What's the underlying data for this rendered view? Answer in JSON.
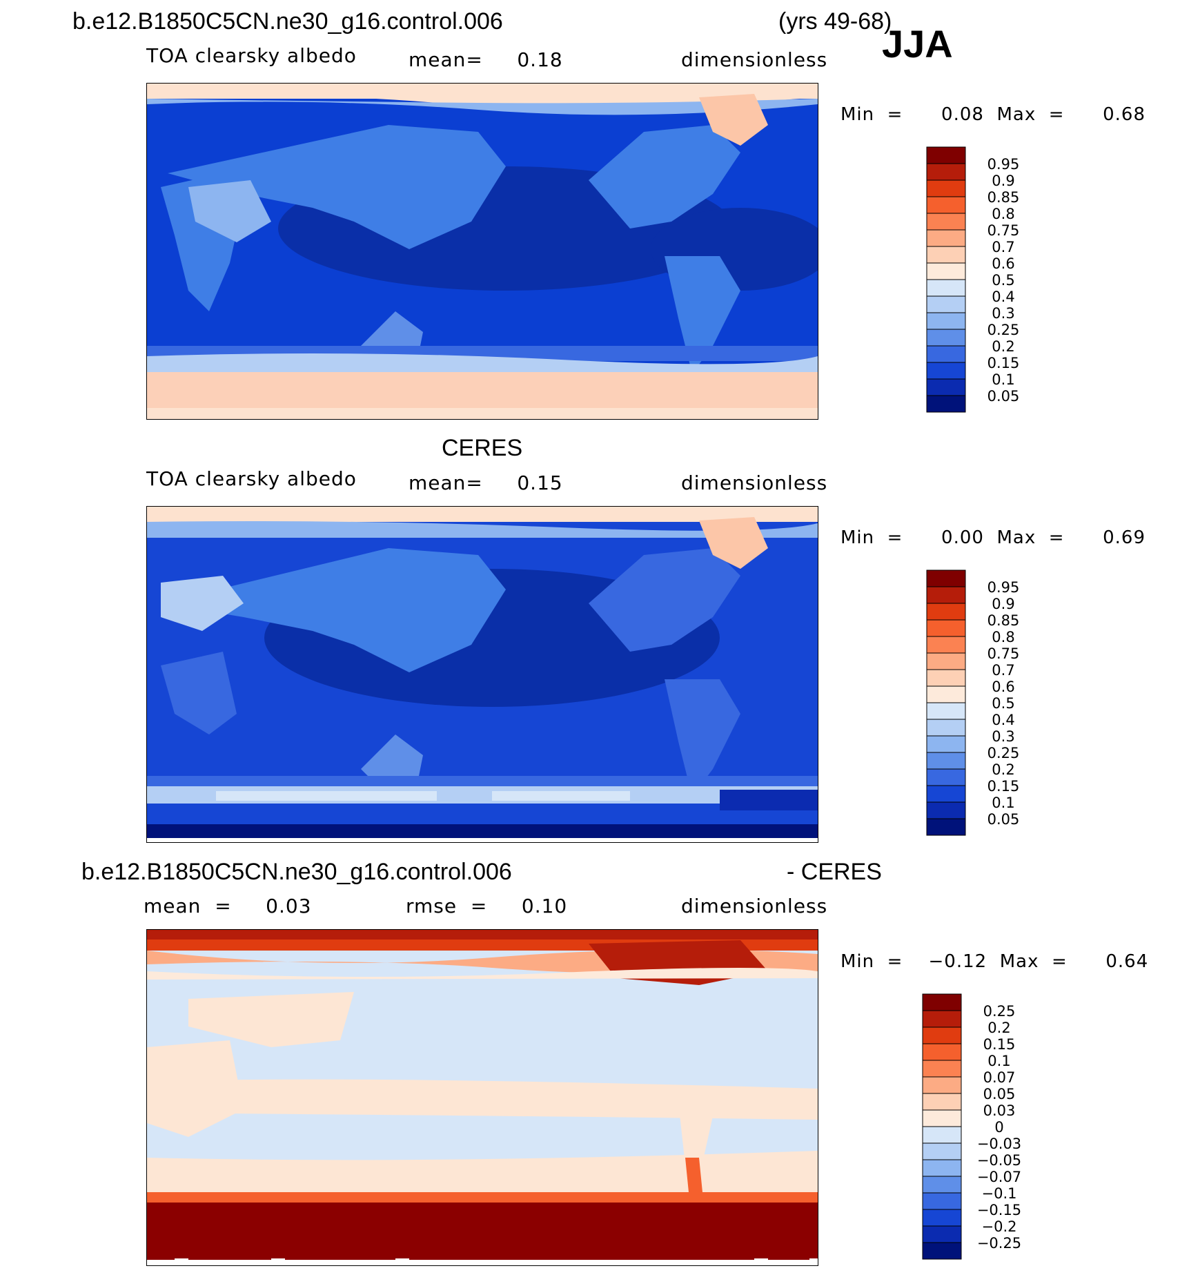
{
  "header": {
    "case_title": "b.e12.B1850C5CN.ne30_g16.control.006",
    "years": "(yrs 49-68)",
    "season": "JJA"
  },
  "panels": [
    {
      "title": "",
      "variable": "TOA clearsky albedo",
      "stat1": "mean=     0.18",
      "units": "dimensionless",
      "minmax": "Min  =      0.08  Max  =      0.68",
      "legend_labels": [
        "0.95",
        "0.9",
        "0.85",
        "0.8",
        "0.75",
        "0.7",
        "0.6",
        "0.5",
        "0.4",
        "0.3",
        "0.25",
        "0.2",
        "0.15",
        "0.1",
        "0.05"
      ]
    },
    {
      "title": "CERES",
      "variable": "TOA clearsky albedo",
      "stat1": "mean=     0.15",
      "units": "dimensionless",
      "minmax": "Min  =      0.00  Max  =      0.69",
      "legend_labels": [
        "0.95",
        "0.9",
        "0.85",
        "0.8",
        "0.75",
        "0.7",
        "0.6",
        "0.5",
        "0.4",
        "0.3",
        "0.25",
        "0.2",
        "0.15",
        "0.1",
        "0.05"
      ]
    },
    {
      "title": "b.e12.B1850C5CN.ne30_g16.control.006",
      "title_suffix": "- CERES",
      "stat1": "mean  =     0.03",
      "stat2": "rmse  =     0.10",
      "units": "dimensionless",
      "minmax": "Min  =    −0.12  Max  =      0.64",
      "legend_labels": [
        "0.25",
        "0.2",
        "0.15",
        "0.1",
        "0.07",
        "0.05",
        "0.03",
        "0",
        "−0.03",
        "−0.05",
        "−0.07",
        "−0.1",
        "−0.15",
        "−0.2",
        "−0.25"
      ]
    }
  ],
  "colors": {
    "palette": [
      "#7f0000",
      "#b51d0a",
      "#e03c10",
      "#f5602d",
      "#fb8252",
      "#fcab84",
      "#fdd0b5",
      "#fdeadb",
      "#d6e6f8",
      "#b4cff4",
      "#8db5f0",
      "#5f8fe8",
      "#3868e0",
      "#1646d4",
      "#0b2bb0",
      "#00127a"
    ],
    "ocean_model": "#0b3fd2",
    "ocean_low": "#0a2fa8",
    "land_model": "#3f7ee6",
    "desert": "#7fb0f1",
    "polar": "#fcd0b8",
    "diff_pos_strong": "#8b0000",
    "diff_pos": "#fde6d4",
    "diff_neg": "#d6e6f8"
  }
}
